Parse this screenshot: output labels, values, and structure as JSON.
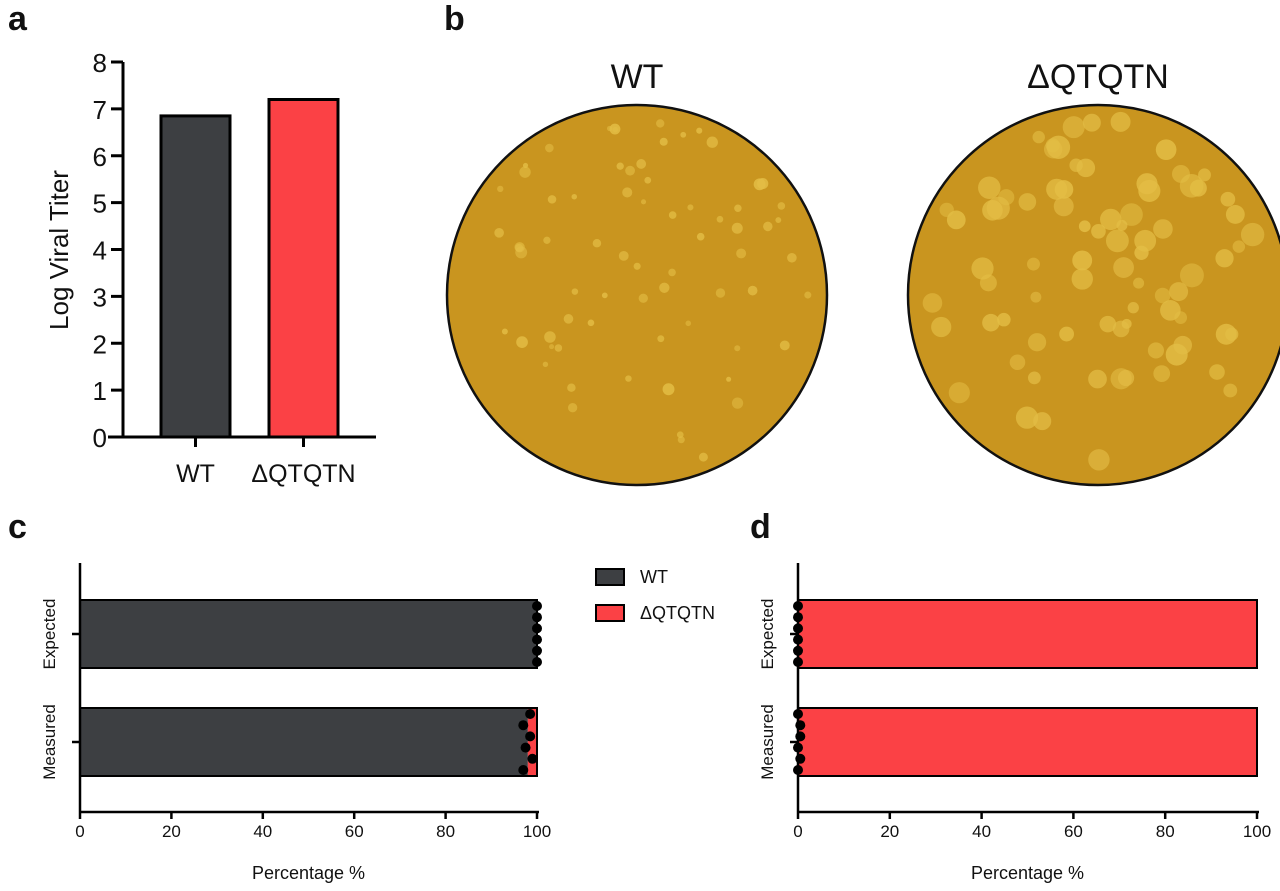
{
  "panels": {
    "a": "a",
    "b": "b",
    "c": "c",
    "d": "d"
  },
  "colors": {
    "wt": "#3d3f42",
    "mutant": "#fb4145",
    "plate": "#c9951f",
    "plaque": "#e3bd45"
  },
  "plates": {
    "wt_label": "WT",
    "mutant_label": "ΔQTQTN",
    "mutant_label_color": "#e8242a"
  },
  "chart_data": [
    {
      "type": "bar",
      "panel": "a",
      "categories": [
        "WT",
        "ΔQTQTN"
      ],
      "values": [
        6.85,
        7.2
      ],
      "ylabel": "Log Viral Titer",
      "xlabel": "",
      "ylim": [
        0,
        8
      ],
      "yticks": [
        "0",
        "1",
        "2",
        "3",
        "4",
        "5",
        "6",
        "7",
        "8"
      ],
      "grid": false
    },
    {
      "type": "bar",
      "orientation": "horizontal-stacked",
      "panel": "c",
      "categories": [
        "Expected",
        "Measured"
      ],
      "series": [
        {
          "name": "WT",
          "values": [
            100,
            98
          ]
        },
        {
          "name": "ΔQTQTN",
          "values": [
            0,
            2
          ]
        }
      ],
      "points": [
        [
          100,
          100,
          100,
          100,
          100,
          100
        ],
        [
          98.5,
          97,
          98.5,
          97.5,
          99,
          97
        ]
      ],
      "xlabel": "Percentage %",
      "xlim": [
        0,
        100
      ],
      "xticks": [
        "0",
        "20",
        "40",
        "60",
        "80",
        "100"
      ],
      "legend": "top-right",
      "grid": false
    },
    {
      "type": "bar",
      "orientation": "horizontal-stacked",
      "panel": "d",
      "categories": [
        "Expected",
        "Measured"
      ],
      "series": [
        {
          "name": "WT",
          "values": [
            0,
            0
          ]
        },
        {
          "name": "ΔQTQTN",
          "values": [
            100,
            100
          ]
        }
      ],
      "points": [
        [
          0,
          0,
          0,
          0,
          0,
          0
        ],
        [
          0,
          0.5,
          0.5,
          0,
          0.5,
          0
        ]
      ],
      "xlabel": "Percentage %",
      "xlim": [
        0,
        100
      ],
      "xticks": [
        "0",
        "20",
        "40",
        "60",
        "80",
        "100"
      ],
      "grid": false
    }
  ]
}
